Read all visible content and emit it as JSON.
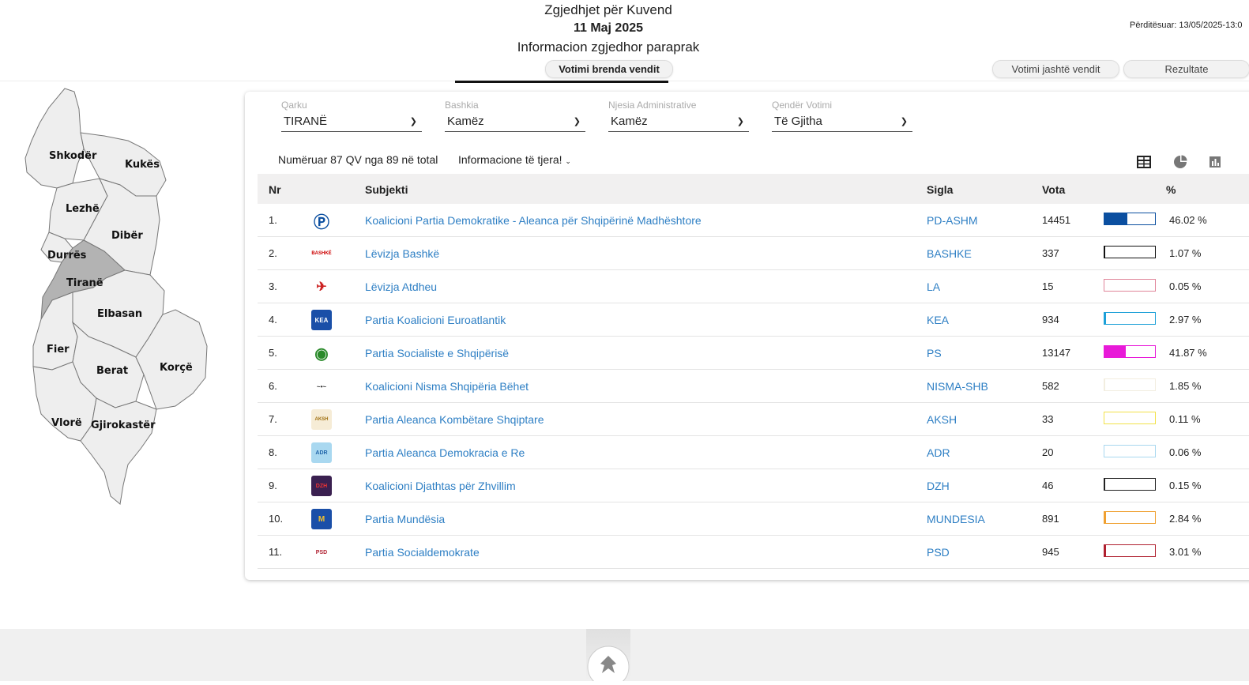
{
  "header": {
    "title": "Zgjedhjet për Kuvend",
    "date": "11 Maj 2025",
    "subtitle": "Informacion zgjedhor paraprak",
    "updated": "Përditësuar: 13/05/2025-13:0"
  },
  "tabs": {
    "inside": "Votimi brenda vendit",
    "outside": "Votimi jashtë vendit",
    "results": "Rezultate"
  },
  "map": {
    "regions": [
      "Shkodër",
      "Kukës",
      "Lezhë",
      "Dibër",
      "Durrës",
      "Tiranë",
      "Elbasan",
      "Fier",
      "Berat",
      "Korçë",
      "Vlorë",
      "Gjirokastër"
    ],
    "selected": "Tiranë"
  },
  "filters": [
    {
      "label": "Qarku",
      "value": "TIRANË"
    },
    {
      "label": "Bashkia",
      "value": "Kamëz"
    },
    {
      "label": "Njesia Administrative",
      "value": "Kamëz"
    },
    {
      "label": "Qendër Votimi",
      "value": "Të Gjitha"
    }
  ],
  "info": {
    "counted": "Numëruar 87 QV nga 89 në total",
    "more": "Informacione të tjera!"
  },
  "table": {
    "headers": {
      "nr": "Nr",
      "subject": "Subjekti",
      "acronym": "Sigla",
      "votes": "Vota",
      "pct": "%"
    },
    "rows": [
      {
        "nr": "1.",
        "name": "Koalicioni Partia Demokratike - Aleanca për Shqipërinë Madhështore",
        "sigla": "PD-ASHM",
        "vota": "14451",
        "pct": "46.02 %",
        "share": 46.02,
        "color": "#0b4fa0"
      },
      {
        "nr": "2.",
        "name": "Lëvizja Bashkë",
        "sigla": "BASHKE",
        "vota": "337",
        "pct": "1.07 %",
        "share": 1.07,
        "color": "#111111"
      },
      {
        "nr": "3.",
        "name": "Lëvizja Atdheu",
        "sigla": "LA",
        "vota": "15",
        "pct": "0.05 %",
        "share": 0.05,
        "color": "#e0859a"
      },
      {
        "nr": "4.",
        "name": "Partia Koalicioni Euroatlantik",
        "sigla": "KEA",
        "vota": "934",
        "pct": "2.97 %",
        "share": 2.97,
        "color": "#1da0d8"
      },
      {
        "nr": "5.",
        "name": "Partia Socialiste e Shqipërisë",
        "sigla": "PS",
        "vota": "13147",
        "pct": "41.87 %",
        "share": 41.87,
        "color": "#e81ad8"
      },
      {
        "nr": "6.",
        "name": "Koalicioni Nisma Shqipëria Bëhet",
        "sigla": "NISMA-SHB",
        "vota": "582",
        "pct": "1.85 %",
        "share": 1.85,
        "color": "#f2eee0"
      },
      {
        "nr": "7.",
        "name": "Partia Aleanca Kombëtare Shqiptare",
        "sigla": "AKSH",
        "vota": "33",
        "pct": "0.11 %",
        "share": 0.11,
        "color": "#f2e24a"
      },
      {
        "nr": "8.",
        "name": "Partia Aleanca Demokracia e Re",
        "sigla": "ADR",
        "vota": "20",
        "pct": "0.06 %",
        "share": 0.06,
        "color": "#a9d8f0"
      },
      {
        "nr": "9.",
        "name": "Koalicioni Djathtas për Zhvillim",
        "sigla": "DZH",
        "vota": "46",
        "pct": "0.15 %",
        "share": 0.15,
        "color": "#222222"
      },
      {
        "nr": "10.",
        "name": "Partia Mundësia",
        "sigla": "MUNDESIA",
        "vota": "891",
        "pct": "2.84 %",
        "share": 2.84,
        "color": "#f0a030"
      },
      {
        "nr": "11.",
        "name": "Partia Socialdemokrate",
        "sigla": "PSD",
        "vota": "945",
        "pct": "3.01 %",
        "share": 3.01,
        "color": "#b02030"
      }
    ]
  }
}
